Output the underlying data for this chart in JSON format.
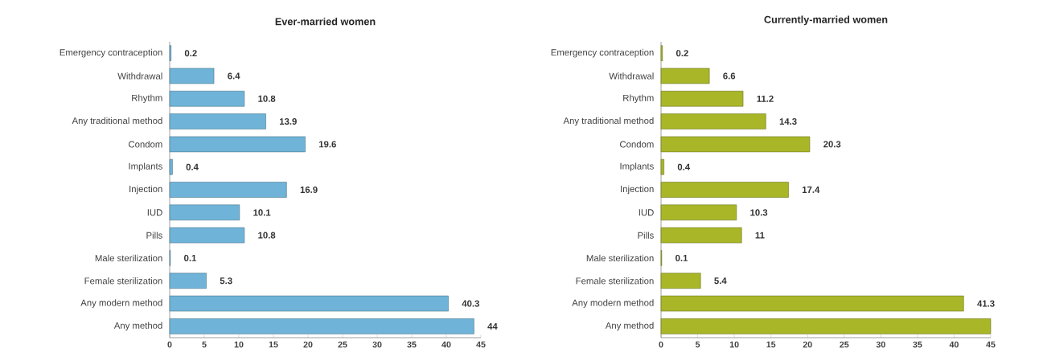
{
  "chart_data": [
    {
      "type": "bar",
      "orientation": "horizontal",
      "title": "Ever-married women",
      "categories": [
        "Emergency contraception",
        "Withdrawal",
        "Rhythm",
        "Any traditional method",
        "Condom",
        "Implants",
        "Injection",
        "IUD",
        "Pills",
        "Male sterilization",
        "Female sterilization",
        "Any modern method",
        "Any method"
      ],
      "values": [
        0.2,
        6.4,
        10.8,
        13.9,
        19.6,
        0.4,
        16.9,
        10.1,
        10.8,
        0.1,
        5.3,
        40.3,
        44
      ],
      "color": "#6fb4d8",
      "data_labels": true,
      "grid": false,
      "xlim": [
        0,
        45
      ],
      "xticks": [
        0,
        5,
        10,
        15,
        20,
        25,
        30,
        35,
        40,
        45
      ]
    },
    {
      "type": "bar",
      "orientation": "horizontal",
      "title": "Currently-married women",
      "categories": [
        "Emergency contraception",
        "Withdrawal",
        "Rhythm",
        "Any traditional method",
        "Condom",
        "Implants",
        "Injection",
        "IUD",
        "Pills",
        "Male sterilization",
        "Female sterilization",
        "Any modern method",
        "Any method"
      ],
      "values": [
        0.2,
        6.6,
        11.2,
        14.3,
        20.3,
        0.4,
        17.4,
        10.3,
        11,
        0.1,
        5.4,
        41.3,
        45
      ],
      "value_labels": [
        "0.2",
        "6.6",
        "11.2",
        "14.3",
        "20.3",
        "0.4",
        "17.4",
        "10.3",
        "11",
        "0.1",
        "5.4",
        "41.3",
        null
      ],
      "color": "#a9b628",
      "grid": false,
      "xlim": [
        0,
        45
      ],
      "xticks": [
        0,
        5,
        10,
        15,
        20,
        25,
        30,
        35,
        40,
        45
      ]
    }
  ]
}
